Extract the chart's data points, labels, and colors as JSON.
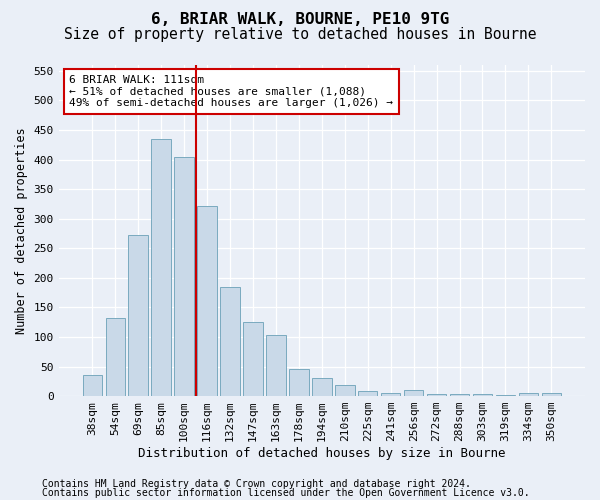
{
  "title": "6, BRIAR WALK, BOURNE, PE10 9TG",
  "subtitle": "Size of property relative to detached houses in Bourne",
  "xlabel": "Distribution of detached houses by size in Bourne",
  "ylabel": "Number of detached properties",
  "categories": [
    "38sqm",
    "54sqm",
    "69sqm",
    "85sqm",
    "100sqm",
    "116sqm",
    "132sqm",
    "147sqm",
    "163sqm",
    "178sqm",
    "194sqm",
    "210sqm",
    "225sqm",
    "241sqm",
    "256sqm",
    "272sqm",
    "288sqm",
    "303sqm",
    "319sqm",
    "334sqm",
    "350sqm"
  ],
  "values": [
    35,
    132,
    272,
    435,
    405,
    322,
    184,
    125,
    104,
    45,
    30,
    18,
    8,
    5,
    10,
    4,
    4,
    3,
    2,
    6,
    6
  ],
  "bar_color": "#c9d9e8",
  "bar_edge_color": "#7aaabf",
  "vline_x": 4.5,
  "vline_color": "#cc0000",
  "annotation_text": "6 BRIAR WALK: 111sqm\n← 51% of detached houses are smaller (1,088)\n49% of semi-detached houses are larger (1,026) →",
  "annotation_box_facecolor": "#ffffff",
  "annotation_box_edgecolor": "#cc0000",
  "ylim": [
    0,
    560
  ],
  "yticks": [
    0,
    50,
    100,
    150,
    200,
    250,
    300,
    350,
    400,
    450,
    500,
    550
  ],
  "footer1": "Contains HM Land Registry data © Crown copyright and database right 2024.",
  "footer2": "Contains public sector information licensed under the Open Government Licence v3.0.",
  "background_color": "#eaeff7",
  "plot_background_color": "#eaeff7",
  "title_fontsize": 11.5,
  "subtitle_fontsize": 10.5,
  "axis_label_fontsize": 8.5,
  "tick_fontsize": 8,
  "annotation_fontsize": 8,
  "footer_fontsize": 7
}
